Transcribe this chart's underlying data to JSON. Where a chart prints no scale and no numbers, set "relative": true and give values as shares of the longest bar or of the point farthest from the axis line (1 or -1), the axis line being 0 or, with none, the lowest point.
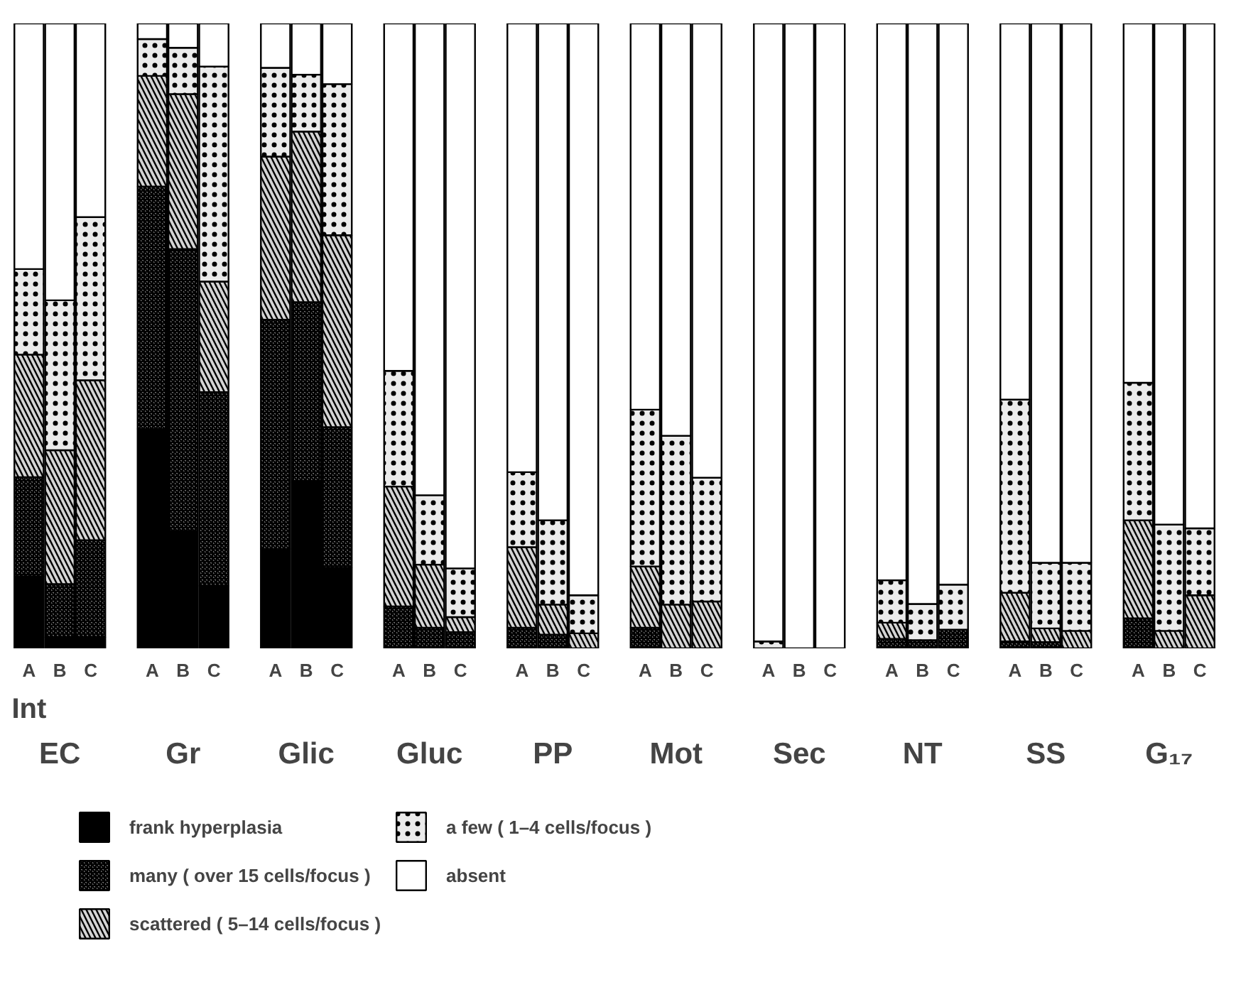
{
  "chart_data": {
    "type": "bar",
    "stacked": true,
    "relative": true,
    "legend": "bottom",
    "categories": [
      "A",
      "B",
      "C",
      "A",
      "B",
      "C",
      "A",
      "B",
      "C",
      "A",
      "B",
      "C",
      "A",
      "B",
      "C",
      "A",
      "B",
      "C",
      "A",
      "B",
      "C",
      "A",
      "B",
      "C",
      "A",
      "B",
      "C",
      "A",
      "B",
      "C"
    ],
    "annotations": [
      "Int",
      "EC",
      "Gr",
      "Glic",
      "Gluc",
      "PP",
      "Mot",
      "Sec",
      "NT",
      "SS",
      "G₁₇"
    ],
    "series": [
      {
        "name": "frank hyperplasia",
        "color": "#000000",
        "values": [
          0.115,
          0.018,
          0.018,
          0.351,
          0.188,
          0.1,
          0.159,
          0.266,
          0.129,
          0,
          0,
          0,
          0,
          0,
          0,
          0,
          0,
          0,
          0,
          0,
          0,
          0,
          0,
          0,
          0,
          0,
          0,
          0,
          0,
          0
        ]
      },
      {
        "name": "many ( over 15 cells/focus )",
        "color": "#8c8c8c",
        "values": [
          0.159,
          0.085,
          0.155,
          0.388,
          0.451,
          0.31,
          0.367,
          0.288,
          0.225,
          0.067,
          0.033,
          0.026,
          0.033,
          0.022,
          0,
          0.033,
          0,
          0,
          0,
          0,
          0,
          0.015,
          0.013,
          0.03,
          0.011,
          0.01,
          0,
          0.048,
          0,
          0
        ]
      },
      {
        "name": "scattered ( 5–14 cells/focus )",
        "color": "#d4d4d4",
        "values": [
          0.196,
          0.214,
          0.256,
          0.177,
          0.248,
          0.177,
          0.261,
          0.273,
          0.307,
          0.192,
          0.101,
          0.024,
          0.129,
          0.048,
          0.024,
          0.098,
          0.07,
          0.075,
          0,
          0,
          0,
          0.026,
          0,
          0,
          0.078,
          0.022,
          0.028,
          0.157,
          0.028,
          0.085
        ]
      },
      {
        "name": "a few ( 1–4 cells/focus )",
        "color": "#ebebeb",
        "values": [
          0.137,
          0.24,
          0.261,
          0.059,
          0.074,
          0.344,
          0.142,
          0.091,
          0.242,
          0.185,
          0.111,
          0.078,
          0.12,
          0.135,
          0.061,
          0.251,
          0.27,
          0.198,
          0.011,
          0,
          0,
          0.068,
          0.058,
          0.072,
          0.309,
          0.105,
          0.109,
          0.22,
          0.17,
          0.107
        ]
      },
      {
        "name": "absent",
        "color": "#ffffff",
        "values": [
          0.393,
          0.443,
          0.31,
          0.025,
          0.039,
          0.069,
          0.071,
          0.082,
          0.097,
          0.556,
          0.755,
          0.872,
          0.718,
          0.795,
          0.915,
          0.618,
          0.66,
          0.727,
          0.989,
          1,
          1,
          0.891,
          0.929,
          0.898,
          0.602,
          0.863,
          0.863,
          0.575,
          0.802,
          0.808
        ]
      }
    ]
  }
}
